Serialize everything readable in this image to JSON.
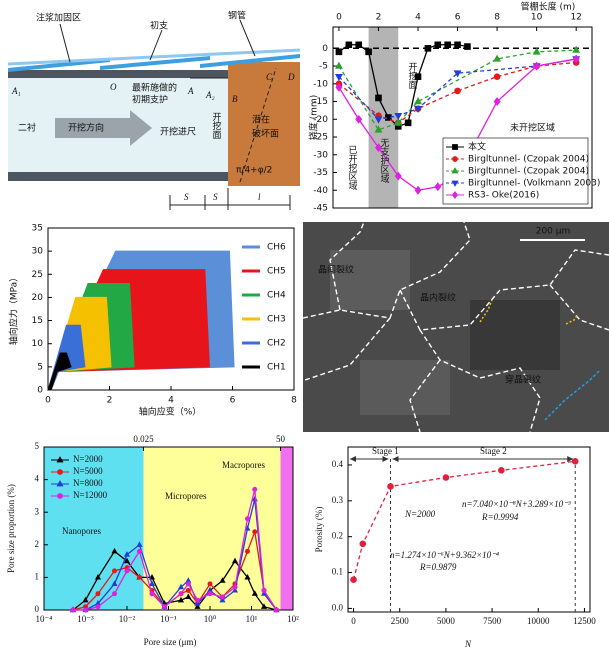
{
  "diagram": {
    "grout": "注浆加固区",
    "primary": "初支",
    "pipe": "钢管",
    "a1": "A₁",
    "o": "O",
    "a": "A",
    "a2": "A₂",
    "b": "B",
    "c": "C",
    "d": "D",
    "secondary": "二衬",
    "direction": "开挖方向",
    "latest": [
      "最新施做的",
      "初期支护"
    ],
    "advance": "开挖进尺",
    "face": "开挖面",
    "failure": [
      "潜在",
      "破坏面"
    ],
    "angle": "π/4+φ/2",
    "s1": "S",
    "s2": "S",
    "l": "l"
  },
  "micrograph": {
    "scale_bar": "200 μm",
    "labels": [
      "晶间裂纹",
      "晶内裂纹",
      "穿晶裂纹"
    ]
  },
  "chart_data": [
    {
      "type": "line",
      "x_label": "管棚长度 (m)",
      "y_label": "挠度 (mm)",
      "x_axis": "top",
      "xlim": [
        -0.3,
        12.8
      ],
      "ylim": [
        -45,
        6
      ],
      "xticks": [
        0,
        2,
        4,
        6,
        8,
        10,
        12
      ],
      "yticks": [
        -45,
        -40,
        -35,
        -30,
        -25,
        -20,
        -15,
        -10,
        -5,
        0
      ],
      "shade": {
        "range": [
          1.5,
          3
        ],
        "color": "#b4b4b4"
      },
      "reference_line": 0,
      "legend": "lower right",
      "annotations": [
        "已开挖区域",
        "无支护区域",
        "开挖面",
        "未开挖区域"
      ],
      "series": [
        {
          "name": "本文",
          "color": "#000000",
          "marker": "square",
          "dash": false,
          "x": [
            0,
            0.5,
            1,
            1.5,
            2,
            2.5,
            3,
            3.5,
            4,
            4.5,
            5,
            5.5,
            6,
            6.5
          ],
          "values": [
            -1,
            1,
            1,
            -1,
            -14,
            -19.5,
            -22,
            -21,
            -8,
            0,
            1,
            1,
            1,
            0.5
          ]
        },
        {
          "name": "Birgltunnel- (Czopak 2004)",
          "color": "#e41a1c",
          "marker": "circle",
          "dash": true,
          "x": [
            0,
            2,
            3,
            4,
            6,
            8,
            10,
            12
          ],
          "values": [
            -10,
            -19,
            -21,
            -17,
            -12,
            -8,
            -5,
            -4
          ]
        },
        {
          "name": "Birgltunnel- (Czopak 2004)",
          "color": "#2ca02c",
          "marker": "triangle-up",
          "dash": true,
          "x": [
            0,
            2,
            3,
            4,
            8,
            10,
            12
          ],
          "values": [
            -5,
            -23,
            -21,
            -15,
            -3,
            -1,
            -0.5
          ]
        },
        {
          "name": "Birgltunnel- (Volkmann 2003)",
          "color": "#1f3fd6",
          "marker": "triangle-down",
          "dash": true,
          "x": [
            0,
            2,
            3,
            4,
            6,
            10,
            12
          ],
          "values": [
            -8,
            -20,
            -19,
            -17,
            -7,
            -5,
            -3
          ]
        },
        {
          "name": "RS3- Oke(2016)",
          "color": "#e020e0",
          "marker": "diamond",
          "dash": false,
          "x": [
            0,
            1,
            2,
            3,
            4,
            5,
            6,
            8,
            10,
            12
          ],
          "values": [
            -11,
            -20,
            -28,
            -36,
            -40,
            -39,
            -36,
            -15,
            -5,
            -3
          ]
        }
      ]
    },
    {
      "type": "area",
      "x_label": "轴向应变（%）",
      "y_label": "轴向应力（MPa）",
      "xlim": [
        0,
        8
      ],
      "ylim": [
        0,
        35
      ],
      "xticks": [
        0,
        2,
        4,
        6,
        8
      ],
      "yticks": [
        0,
        5,
        10,
        15,
        20,
        25,
        30,
        35
      ],
      "legend": "upper right",
      "series": [
        {
          "name": "CH6",
          "color": "#5b8fd8",
          "x": [
            0,
            2.2,
            5.9,
            6.05,
            0.35,
            0.1
          ],
          "values": [
            0,
            30,
            30,
            5,
            4,
            0
          ]
        },
        {
          "name": "CH5",
          "color": "#e8141c",
          "x": [
            0,
            1.8,
            5.1,
            5.25,
            0.3,
            0.1
          ],
          "values": [
            0,
            26,
            26,
            5,
            4,
            0
          ]
        },
        {
          "name": "CH4",
          "color": "#22a845",
          "x": [
            0,
            1.3,
            2.65,
            2.8,
            0.3,
            0.1
          ],
          "values": [
            0,
            23,
            23,
            5,
            4,
            0
          ]
        },
        {
          "name": "CH3",
          "color": "#f5c000",
          "x": [
            0,
            0.9,
            1.9,
            2.05,
            0.3,
            0.1
          ],
          "values": [
            0,
            20,
            20,
            5,
            4,
            0
          ]
        },
        {
          "name": "CH2",
          "color": "#3a6fd8",
          "x": [
            0,
            0.6,
            1.05,
            1.2,
            0.3,
            0.1
          ],
          "values": [
            0,
            14,
            14,
            5,
            4,
            0
          ]
        },
        {
          "name": "CH1",
          "color": "#000000",
          "x": [
            0,
            0.4,
            0.6,
            0.75,
            0.3,
            0.1
          ],
          "values": [
            0,
            8,
            8,
            5,
            4,
            0
          ]
        }
      ]
    },
    {
      "type": "line",
      "x_label": "Pore size (μm)",
      "y_label": "Pore size proportion (%)",
      "xscale": "log",
      "xlim": [
        0.0001,
        100
      ],
      "ylim": [
        0,
        5
      ],
      "xticks": [
        {
          "value": 0.0001,
          "label": "10⁻⁴"
        },
        {
          "value": 0.001,
          "label": "10⁻³"
        },
        {
          "value": 0.01,
          "label": "10⁻²"
        },
        {
          "value": 0.1,
          "label": "10⁻¹"
        },
        {
          "value": 1,
          "label": "10⁰"
        },
        {
          "value": 10,
          "label": "10¹"
        },
        {
          "value": 100,
          "label": "10²"
        }
      ],
      "x2ticks": [
        0.025,
        50
      ],
      "yticks": [
        0,
        1,
        2,
        3,
        4,
        5
      ],
      "legend": "upper left",
      "regions": [
        {
          "name": "Nanopores",
          "range": [
            0.0001,
            0.025
          ],
          "color": "#5fe0f0"
        },
        {
          "name": "Micropores",
          "range": [
            0.025,
            50
          ],
          "color": "#ffff99"
        },
        {
          "name": "Macropores",
          "range": [
            50,
            100
          ],
          "color": "#f070f0"
        }
      ],
      "x": [
        0.0005,
        0.001,
        0.002,
        0.005,
        0.01,
        0.02,
        0.04,
        0.08,
        0.2,
        0.3,
        0.5,
        1,
        2,
        4,
        8,
        12,
        20,
        40
      ],
      "series": [
        {
          "name": "N=2000",
          "color": "#000000",
          "marker": "triangle-up",
          "values": [
            0,
            0.3,
            1.0,
            1.8,
            1.5,
            1.0,
            1.0,
            0.2,
            0.3,
            0.4,
            0.1,
            0.6,
            0.9,
            1.5,
            1.0,
            0.5,
            0.1,
            0
          ]
        },
        {
          "name": "N=5000",
          "color": "#e41a1c",
          "marker": "circle",
          "values": [
            0,
            0.1,
            0.5,
            1.2,
            1.3,
            1.0,
            0.6,
            0.1,
            0.5,
            0.6,
            0.2,
            0.8,
            0.4,
            0.8,
            1.8,
            2.4,
            0.6,
            0
          ]
        },
        {
          "name": "N=8000",
          "color": "#1f3fd6",
          "marker": "triangle-up",
          "values": [
            0,
            0,
            0.2,
            0.8,
            1.7,
            2.0,
            0.8,
            0.1,
            0.7,
            0.9,
            0.2,
            0.6,
            0.3,
            0.6,
            2.5,
            3.4,
            0.5,
            0
          ]
        },
        {
          "name": "N=12000",
          "color": "#e020e0",
          "marker": "circle",
          "values": [
            0,
            0,
            0.1,
            0.5,
            1.2,
            1.8,
            0.5,
            0.1,
            0.5,
            0.8,
            0.3,
            0.5,
            0.4,
            0.7,
            2.8,
            3.7,
            0.6,
            0
          ]
        }
      ]
    },
    {
      "type": "line",
      "x_label": "N",
      "y_label": "Porosity (%)",
      "xlim": [
        -300,
        12800
      ],
      "ylim": [
        -0.01,
        0.45
      ],
      "xticks": [
        0,
        2500,
        5000,
        7500,
        10000,
        12500
      ],
      "yticks": [
        {
          "value": 0,
          "label": "0.0"
        },
        0.1,
        0.2,
        0.3,
        0.4
      ],
      "vlines": [
        2000,
        12000
      ],
      "stages": [
        "Stage 1",
        "Stage 2"
      ],
      "annotations": [
        "N=2000",
        "n=1.274×10⁻⁶N+9.362×10⁻⁴",
        "R=0.9879",
        "n=7.040×10⁻⁸N+3.289×10⁻³",
        "R=0.9994"
      ],
      "series": [
        {
          "color": "#e0203c",
          "marker": "circle",
          "dash": true,
          "x": [
            0,
            500,
            2000,
            5000,
            8000,
            12000
          ],
          "values": [
            0.08,
            0.18,
            0.34,
            0.365,
            0.385,
            0.41
          ]
        }
      ]
    }
  ]
}
